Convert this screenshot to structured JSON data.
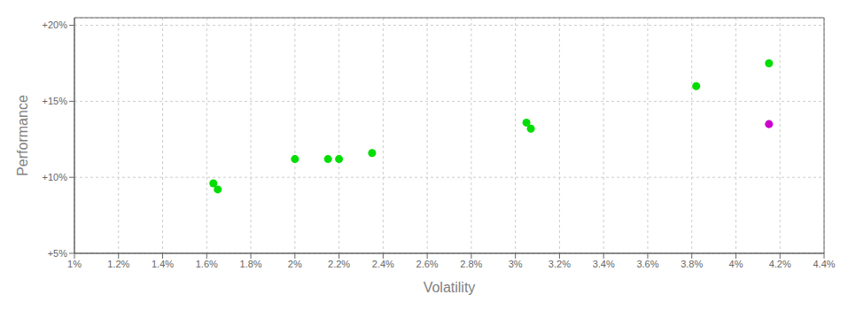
{
  "chart_data": {
    "type": "scatter",
    "xlabel": "Volatility",
    "ylabel": "Performance",
    "xlim": [
      0.01,
      0.044
    ],
    "ylim": [
      0.05,
      0.205
    ],
    "xticks": [
      {
        "value": 0.01,
        "label": "1%"
      },
      {
        "value": 0.012,
        "label": "1.2%"
      },
      {
        "value": 0.014,
        "label": "1.4%"
      },
      {
        "value": 0.016,
        "label": "1.6%"
      },
      {
        "value": 0.018,
        "label": "1.8%"
      },
      {
        "value": 0.02,
        "label": "2%"
      },
      {
        "value": 0.022,
        "label": "2.2%"
      },
      {
        "value": 0.024,
        "label": "2.4%"
      },
      {
        "value": 0.026,
        "label": "2.6%"
      },
      {
        "value": 0.028,
        "label": "2.8%"
      },
      {
        "value": 0.03,
        "label": "3%"
      },
      {
        "value": 0.032,
        "label": "3.2%"
      },
      {
        "value": 0.034,
        "label": "3.4%"
      },
      {
        "value": 0.036,
        "label": "3.6%"
      },
      {
        "value": 0.038,
        "label": "3.8%"
      },
      {
        "value": 0.04,
        "label": "4%"
      },
      {
        "value": 0.042,
        "label": "4.2%"
      },
      {
        "value": 0.044,
        "label": "4.4%"
      }
    ],
    "yticks": [
      {
        "value": 0.05,
        "label": "+5%"
      },
      {
        "value": 0.1,
        "label": "+10%"
      },
      {
        "value": 0.15,
        "label": "+15%"
      },
      {
        "value": 0.2,
        "label": "+20%"
      }
    ],
    "grid": true,
    "series": [
      {
        "color": "#00dd00",
        "x": [
          0.0163,
          0.0165,
          0.02,
          0.0215,
          0.022,
          0.0235,
          0.0305,
          0.0307,
          0.0382,
          0.0415
        ],
        "values": [
          0.096,
          0.092,
          0.112,
          0.112,
          0.112,
          0.116,
          0.136,
          0.132,
          0.16,
          0.175
        ]
      },
      {
        "color": "#cc00cc",
        "x": [
          0.0415
        ],
        "values": [
          0.135
        ]
      }
    ]
  }
}
